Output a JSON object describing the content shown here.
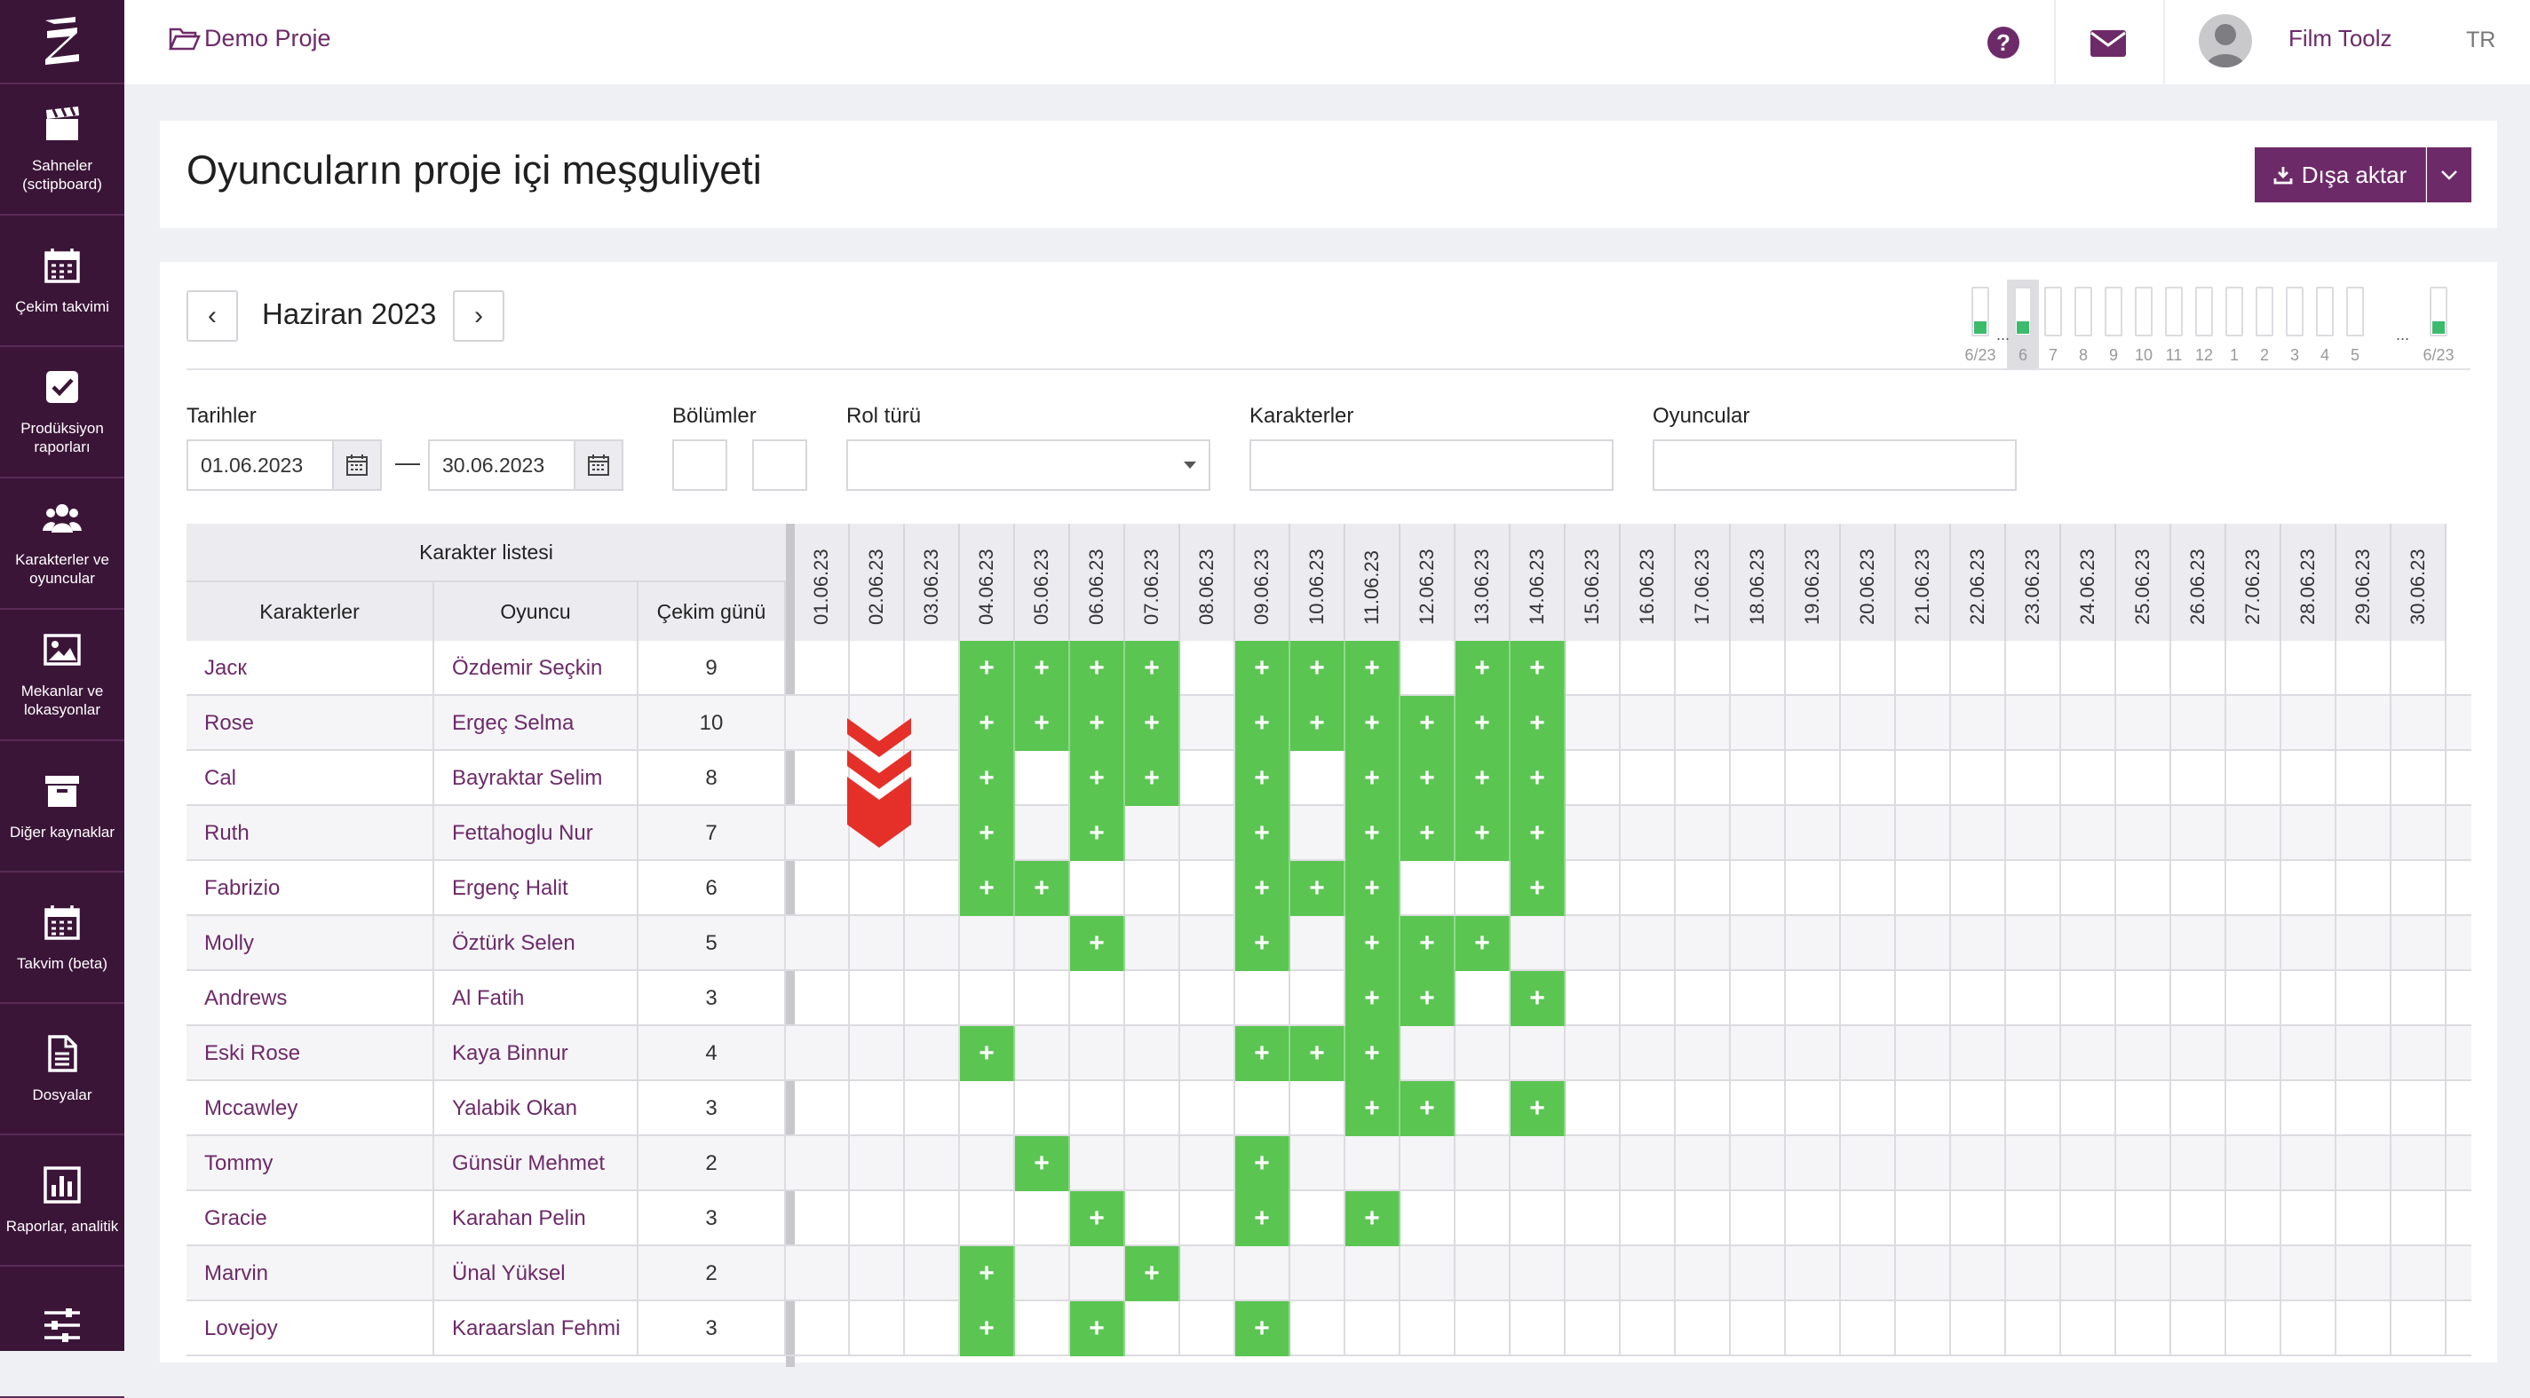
{
  "sidebar": {
    "items": [
      {
        "label": "Sahneler (sctipboard)",
        "icon": "clapperboard-icon"
      },
      {
        "label": "Çekim takvimi",
        "icon": "calendar-icon"
      },
      {
        "label": "Prodüksiyon raporları",
        "icon": "checkbox-icon"
      },
      {
        "label": "Karakterler ve oyuncular",
        "icon": "users-icon"
      },
      {
        "label": "Mekanlar ve lokasyonlar",
        "icon": "image-icon"
      },
      {
        "label": "Diğer kaynaklar",
        "icon": "archive-icon"
      },
      {
        "label": "Takvim (beta)",
        "icon": "calendar-icon"
      },
      {
        "label": "Dosyalar",
        "icon": "file-icon"
      },
      {
        "label": "Raporlar, analitik",
        "icon": "bar-chart-icon"
      },
      {
        "label": "",
        "icon": "sliders-icon"
      }
    ]
  },
  "topbar": {
    "project": "Demo Proje",
    "user": "Film Toolz",
    "lang": "TR"
  },
  "page": {
    "title": "Oyuncuların proje içi meşguliyeti",
    "export_label": "Dışa aktar"
  },
  "calendar": {
    "month": "Haziran 2023",
    "prev": "‹",
    "next": "›"
  },
  "mini_nav": {
    "labels": [
      "6/23",
      "6",
      "7",
      "8",
      "9",
      "10",
      "11",
      "12",
      "1",
      "2",
      "3",
      "4",
      "5",
      "6/23"
    ],
    "dots": "..."
  },
  "filters": {
    "dates_label": "Tarihler",
    "date_from": "01.06.2023",
    "date_to": "30.06.2023",
    "dash": "—",
    "episodes_label": "Bölümler",
    "role_label": "Rol türü",
    "characters_label": "Karakterler",
    "actors_label": "Oyuncular"
  },
  "table": {
    "group_header": "Karakter listesi",
    "col_character": "Karakterler",
    "col_actor": "Oyuncu",
    "col_days": "Çekim günü",
    "plus": "+",
    "dates": [
      "01.06.23",
      "02.06.23",
      "03.06.23",
      "04.06.23",
      "05.06.23",
      "06.06.23",
      "07.06.23",
      "08.06.23",
      "09.06.23",
      "10.06.23",
      "11.06.23",
      "12.06.23",
      "13.06.23",
      "14.06.23",
      "15.06.23",
      "16.06.23",
      "17.06.23",
      "18.06.23",
      "19.06.23",
      "20.06.23",
      "21.06.23",
      "22.06.23",
      "23.06.23",
      "24.06.23",
      "25.06.23",
      "26.06.23",
      "27.06.23",
      "28.06.23",
      "29.06.23",
      "30.06.23"
    ],
    "rows": [
      {
        "character": "Jacк",
        "actor": "Özdemir Seçkin",
        "days": "9",
        "active": [
          4,
          5,
          6,
          7,
          9,
          10,
          11,
          13,
          14
        ]
      },
      {
        "character": "Rose",
        "actor": "Ergeç Selma",
        "days": "10",
        "active": [
          4,
          5,
          6,
          7,
          9,
          10,
          11,
          12,
          13,
          14
        ]
      },
      {
        "character": "Cal",
        "actor": "Bayraktar Selim",
        "days": "8",
        "active": [
          4,
          6,
          7,
          9,
          11,
          12,
          13,
          14
        ]
      },
      {
        "character": "Ruth",
        "actor": "Fettahoglu Nur",
        "days": "7",
        "active": [
          4,
          6,
          9,
          11,
          12,
          13,
          14
        ]
      },
      {
        "character": "Fabrizio",
        "actor": "Ergenç Halit",
        "days": "6",
        "active": [
          4,
          5,
          9,
          10,
          11,
          14
        ]
      },
      {
        "character": "Molly",
        "actor": "Öztürk Selen",
        "days": "5",
        "active": [
          6,
          9,
          11,
          12,
          13
        ]
      },
      {
        "character": "Andrews",
        "actor": "Al Fatih",
        "days": "3",
        "active": [
          11,
          12,
          14
        ]
      },
      {
        "character": "Eski Rose",
        "actor": "Kaya Binnur",
        "days": "4",
        "active": [
          4,
          9,
          10,
          11
        ]
      },
      {
        "character": "Mccawley",
        "actor": "Yalabik Okan",
        "days": "3",
        "active": [
          11,
          12,
          14
        ]
      },
      {
        "character": "Tommy",
        "actor": "Günsür Mehmet",
        "days": "2",
        "active": [
          5,
          9
        ]
      },
      {
        "character": "Gracie",
        "actor": "Karahan Pelin",
        "days": "3",
        "active": [
          6,
          9,
          11
        ]
      },
      {
        "character": "Marvin",
        "actor": "Ünal Yüksel",
        "days": "2",
        "active": [
          4,
          7
        ]
      },
      {
        "character": "Lovejoy",
        "actor": "Karaarslan Fehmi",
        "days": "3",
        "active": [
          4,
          6,
          9
        ]
      }
    ]
  },
  "colors": {
    "sidebar": "#3b1538",
    "accent": "#6d2a69",
    "active_cell": "#5bc552",
    "mini_fill": "#3dbb6c",
    "arrow": "#e5302a"
  }
}
